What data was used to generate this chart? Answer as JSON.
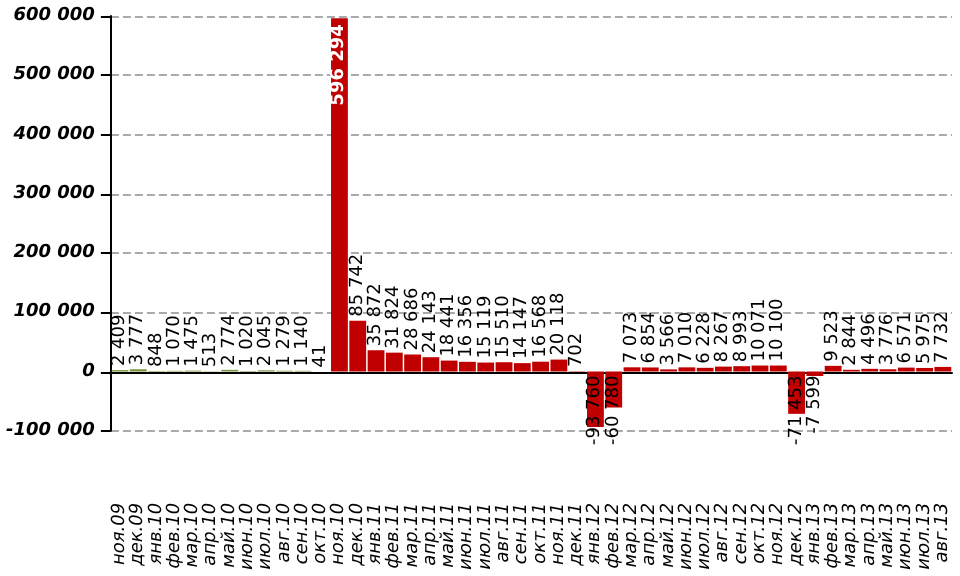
{
  "chart_data": {
    "type": "bar",
    "categories": [
      "ноя.09",
      "дек.09",
      "янв.10",
      "фев.10",
      "мар.10",
      "апр.10",
      "май.10",
      "июн.10",
      "июл.10",
      "авг.10",
      "сен.10",
      "окт.10",
      "ноя.10",
      "дек.10",
      "янв.11",
      "фев.11",
      "мар.11",
      "апр.11",
      "май.11",
      "июн.11",
      "июл.11",
      "авг.11",
      "сен.11",
      "окт.11",
      "ноя.11",
      "дек.11",
      "янв.12",
      "фев.12",
      "мар.12",
      "апр.12",
      "май.12",
      "июн.12",
      "июл.12",
      "авг.12",
      "сен.12",
      "окт.12",
      "ноя.12",
      "дек.12",
      "янв.13",
      "фев.13",
      "мар.13",
      "апр.13",
      "май.13",
      "июн.13",
      "июл.13",
      "авг.13"
    ],
    "values": [
      2409,
      3777,
      848,
      1070,
      1475,
      513,
      2774,
      1020,
      2045,
      1279,
      1140,
      41,
      596294,
      85742,
      35872,
      31824,
      28686,
      24143,
      18441,
      16356,
      15119,
      15510,
      14147,
      16568,
      20118,
      702,
      -93760,
      -60780,
      7073,
      6854,
      3566,
      7010,
      6228,
      8267,
      8993,
      10071,
      10100,
      -71453,
      -7599,
      9523,
      2844,
      4496,
      3776,
      6571,
      5975,
      7732
    ],
    "colors": [
      "#77933c",
      "#77933c",
      "#77933c",
      "#77933c",
      "#77933c",
      "#77933c",
      "#77933c",
      "#77933c",
      "#77933c",
      "#77933c",
      "#77933c",
      "#77933c",
      "#c00000",
      "#c00000",
      "#c00000",
      "#c00000",
      "#c00000",
      "#c00000",
      "#c00000",
      "#c00000",
      "#c00000",
      "#c00000",
      "#c00000",
      "#c00000",
      "#c00000",
      "#c00000",
      "#c00000",
      "#c00000",
      "#c00000",
      "#c00000",
      "#c00000",
      "#c00000",
      "#c00000",
      "#c00000",
      "#c00000",
      "#c00000",
      "#c00000",
      "#c00000",
      "#c00000",
      "#c00000",
      "#c00000",
      "#c00000",
      "#c00000",
      "#c00000",
      "#c00000",
      "#c00000"
    ],
    "ylim": [
      -100000,
      600000
    ],
    "yticks": [
      {
        "value": -100000,
        "label": "-100 000"
      },
      {
        "value": 0,
        "label": "0"
      },
      {
        "value": 100000,
        "label": "100 000"
      },
      {
        "value": 200000,
        "label": "200 000"
      },
      {
        "value": 300000,
        "label": "300 000"
      },
      {
        "value": 400000,
        "label": "400 000"
      },
      {
        "value": 500000,
        "label": "500 000"
      },
      {
        "value": 600000,
        "label": "600 000"
      }
    ],
    "grid": "y",
    "data_labels": true
  }
}
